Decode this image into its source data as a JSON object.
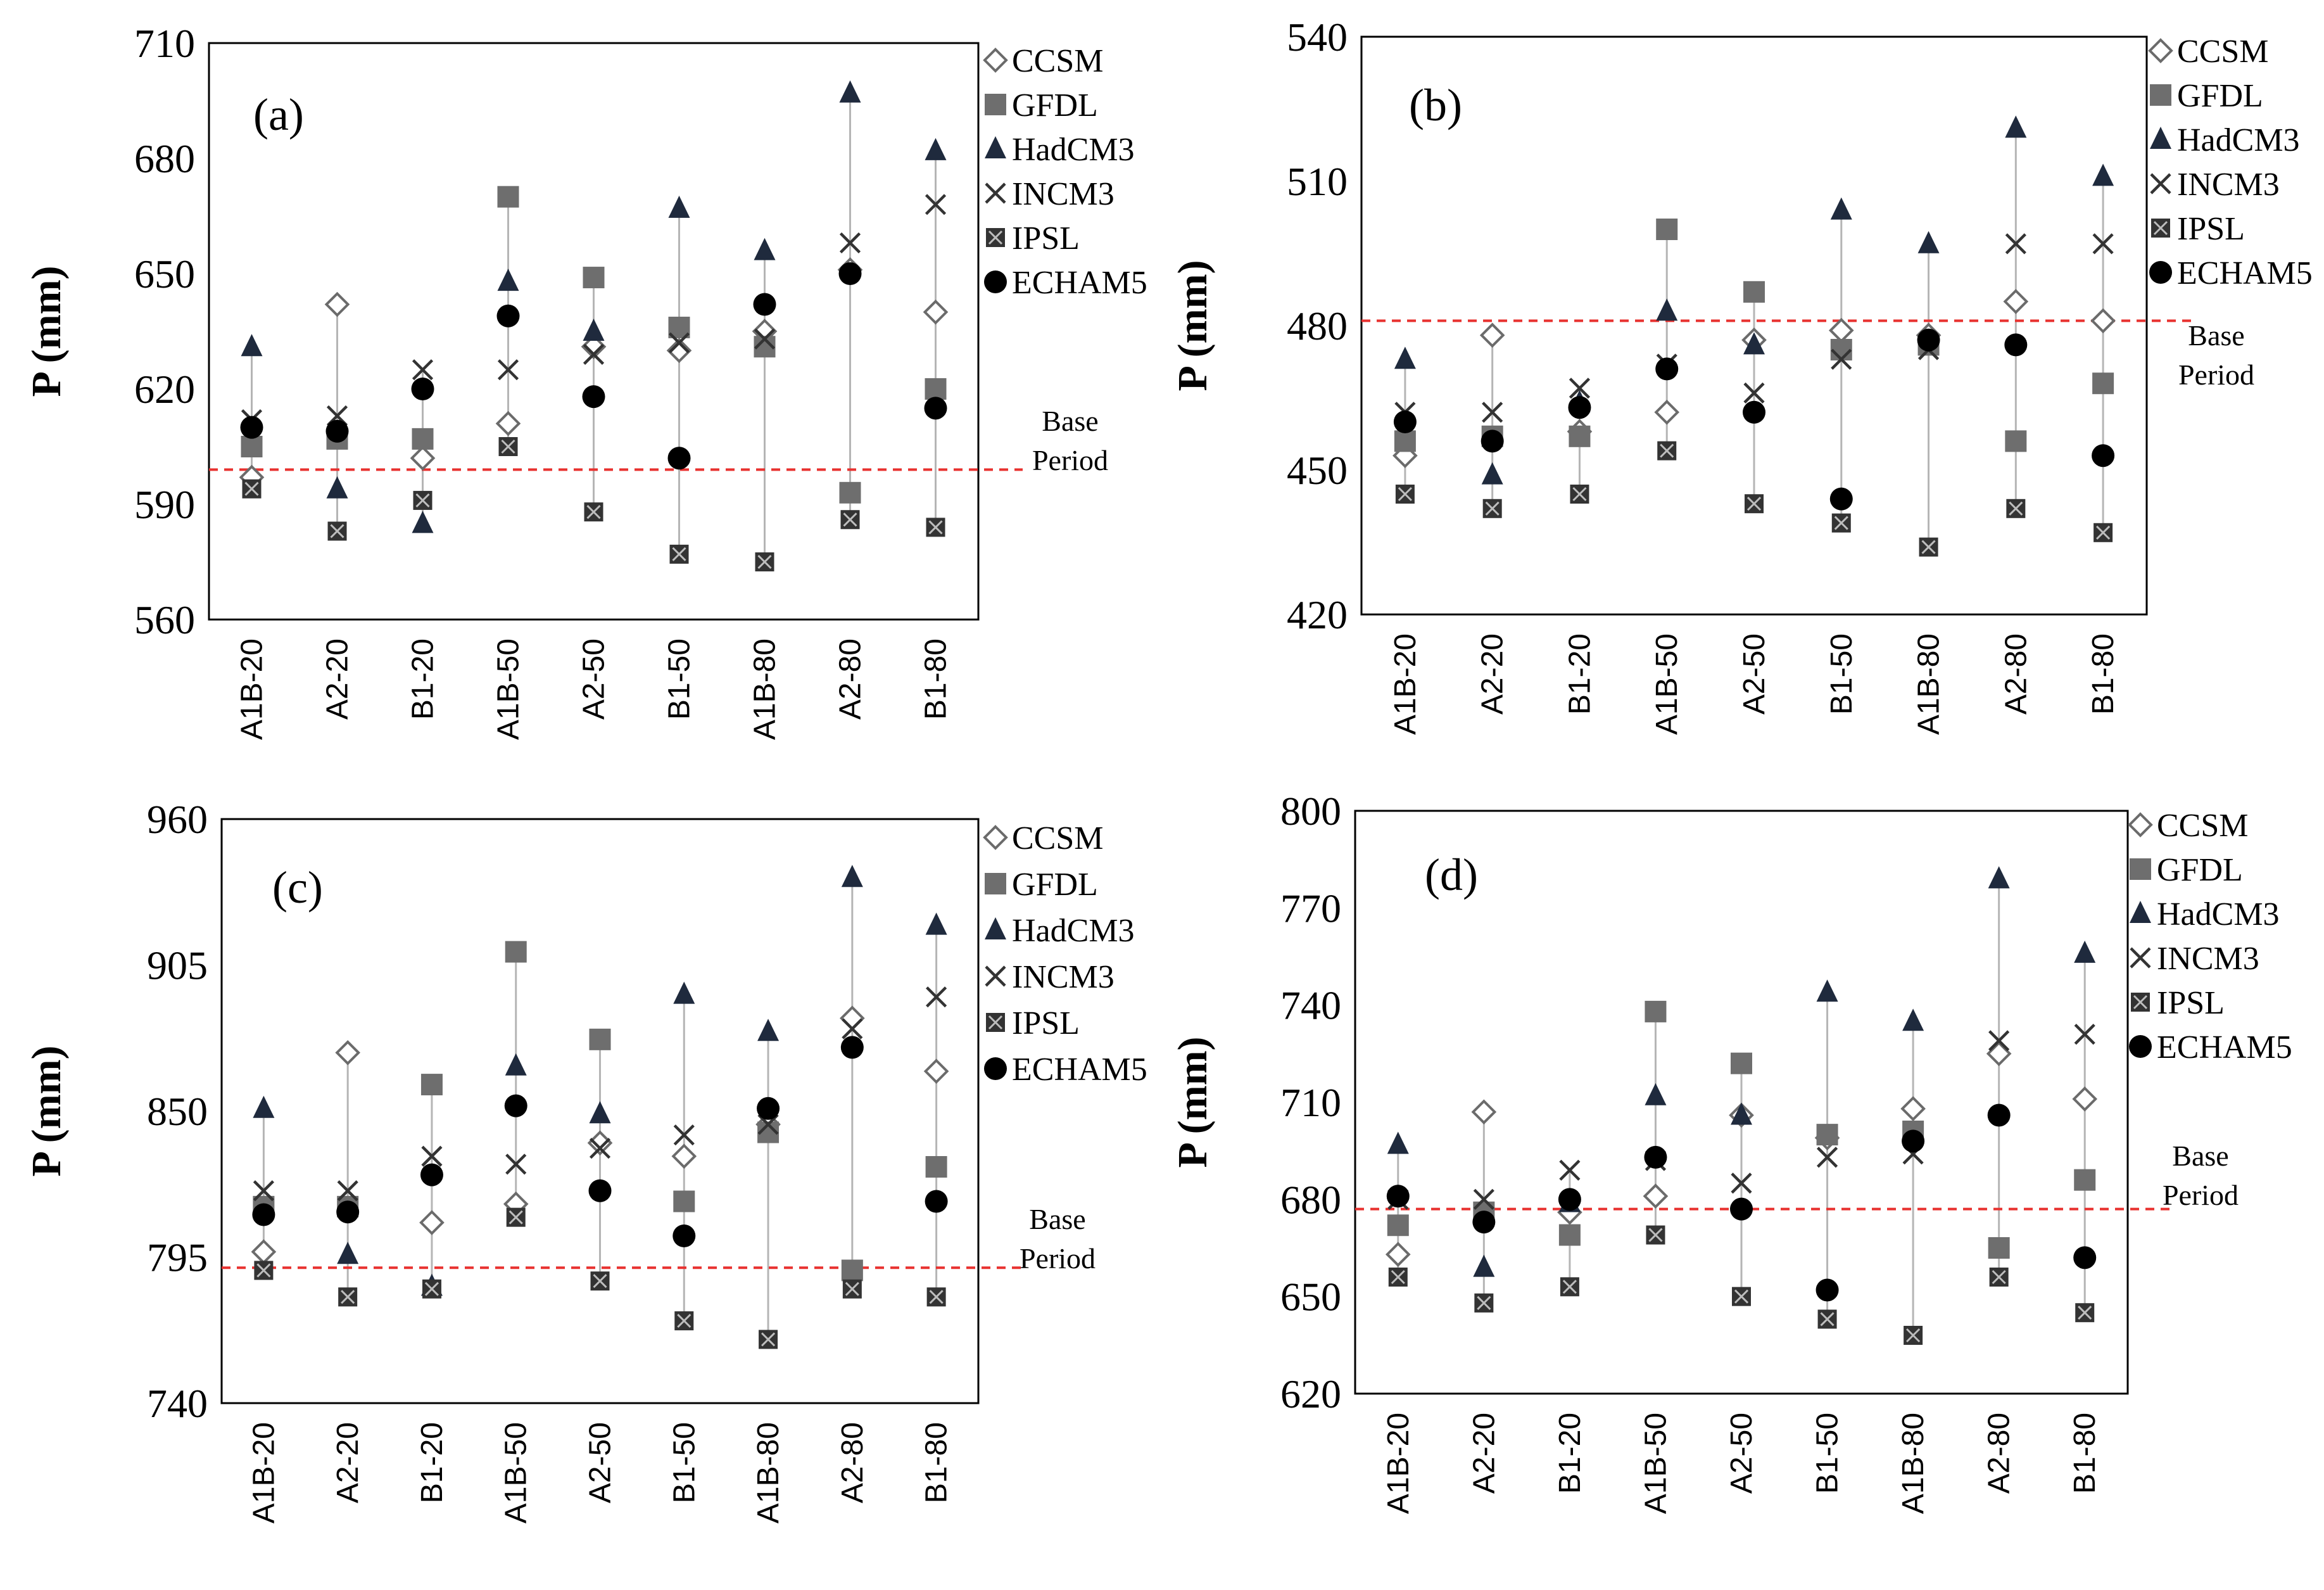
{
  "chart_data": [
    {
      "type": "scatter",
      "label": "(a)",
      "ylabel": "P (mm)",
      "ylim": [
        560,
        710
      ],
      "yticks": [
        560,
        590,
        620,
        650,
        680,
        710
      ],
      "base_period": 599,
      "base_label": [
        "Base",
        "Period"
      ],
      "categories": [
        "A1B-20",
        "A2-20",
        "B1-20",
        "A1B-50",
        "A2-50",
        "B1-50",
        "A1B-80",
        "A2-80",
        "B1-80"
      ],
      "series": [
        {
          "name": "CCSM",
          "values": [
            597,
            642,
            602,
            611,
            631,
            630,
            635,
            651,
            640
          ]
        },
        {
          "name": "GFDL",
          "values": [
            605,
            607,
            607,
            670,
            649,
            636,
            631,
            593,
            620
          ]
        },
        {
          "name": "HadCM3",
          "values": [
            631,
            594,
            585,
            648,
            635,
            667,
            656,
            697,
            682
          ]
        },
        {
          "name": "INCM3",
          "values": [
            612,
            613,
            625,
            625,
            629,
            632,
            633,
            658,
            668
          ]
        },
        {
          "name": "IPSL",
          "values": [
            594,
            583,
            591,
            605,
            588,
            577,
            575,
            586,
            584
          ]
        },
        {
          "name": "ECHAM5",
          "values": [
            610,
            609,
            620,
            639,
            618,
            602,
            642,
            650,
            615
          ]
        }
      ]
    },
    {
      "type": "scatter",
      "label": "(b)",
      "ylabel": "P (mm)",
      "ylim": [
        420,
        540
      ],
      "yticks": [
        420,
        450,
        480,
        510,
        540
      ],
      "base_period": 481,
      "base_label": [
        "Base",
        "Period"
      ],
      "categories": [
        "A1B-20",
        "A2-20",
        "B1-20",
        "A1B-50",
        "A2-50",
        "B1-50",
        "A1B-80",
        "A2-80",
        "B1-80"
      ],
      "series": [
        {
          "name": "CCSM",
          "values": [
            453,
            478,
            458,
            462,
            477,
            479,
            478,
            485,
            481
          ]
        },
        {
          "name": "GFDL",
          "values": [
            456,
            457,
            457,
            500,
            487,
            475,
            476,
            456,
            468
          ]
        },
        {
          "name": "HadCM3",
          "values": [
            473,
            449,
            464,
            483,
            476,
            504,
            497,
            521,
            511
          ]
        },
        {
          "name": "INCM3",
          "values": [
            462,
            462,
            467,
            472,
            466,
            473,
            475,
            497,
            497
          ]
        },
        {
          "name": "IPSL",
          "values": [
            445,
            442,
            445,
            454,
            443,
            439,
            434,
            442,
            437
          ]
        },
        {
          "name": "ECHAM5",
          "values": [
            460,
            456,
            463,
            471,
            462,
            444,
            477,
            476,
            453
          ]
        }
      ]
    },
    {
      "type": "scatter",
      "label": "(c)",
      "ylabel": "P (mm)",
      "ylim": [
        740,
        960
      ],
      "yticks": [
        740,
        795,
        850,
        905,
        960
      ],
      "base_period": 791,
      "base_label": [
        "Base",
        "Period"
      ],
      "categories": [
        "A1B-20",
        "A2-20",
        "B1-20",
        "A1B-50",
        "A2-50",
        "B1-50",
        "A1B-80",
        "A2-80",
        "B1-80"
      ],
      "series": [
        {
          "name": "CCSM",
          "values": [
            797,
            872,
            808,
            815,
            838,
            833,
            845,
            885,
            865
          ]
        },
        {
          "name": "GFDL",
          "values": [
            814,
            814,
            860,
            910,
            877,
            816,
            842,
            790,
            829
          ]
        },
        {
          "name": "HadCM3",
          "values": [
            851,
            796,
            784,
            867,
            849,
            894,
            880,
            938,
            920
          ]
        },
        {
          "name": "INCM3",
          "values": [
            820,
            820,
            833,
            830,
            836,
            841,
            845,
            881,
            893
          ]
        },
        {
          "name": "IPSL",
          "values": [
            790,
            780,
            783,
            810,
            786,
            771,
            764,
            783,
            780
          ]
        },
        {
          "name": "ECHAM5",
          "values": [
            811,
            812,
            826,
            852,
            820,
            803,
            851,
            874,
            816
          ]
        }
      ]
    },
    {
      "type": "scatter",
      "label": "(d)",
      "ylabel": "P (mm)",
      "ylim": [
        620,
        800
      ],
      "yticks": [
        620,
        650,
        680,
        710,
        740,
        770,
        800
      ],
      "base_period": 677,
      "base_label": [
        "Base",
        "Period"
      ],
      "categories": [
        "A1B-20",
        "A2-20",
        "B1-20",
        "A1B-50",
        "A2-50",
        "B1-50",
        "A1B-80",
        "A2-80",
        "B1-80"
      ],
      "series": [
        {
          "name": "CCSM",
          "values": [
            663,
            707,
            676,
            681,
            706,
            699,
            708,
            725,
            711
          ]
        },
        {
          "name": "GFDL",
          "values": [
            672,
            676,
            669,
            738,
            722,
            700,
            701,
            665,
            686
          ]
        },
        {
          "name": "HadCM3",
          "values": [
            697,
            659,
            679,
            712,
            706,
            744,
            735,
            779,
            756
          ]
        },
        {
          "name": "INCM3",
          "values": [
            680,
            680,
            689,
            692,
            685,
            693,
            694,
            729,
            731
          ]
        },
        {
          "name": "IPSL",
          "values": [
            656,
            648,
            653,
            669,
            650,
            643,
            638,
            656,
            645
          ]
        },
        {
          "name": "ECHAM5",
          "values": [
            681,
            673,
            680,
            693,
            677,
            652,
            698,
            706,
            662
          ]
        }
      ]
    }
  ]
}
